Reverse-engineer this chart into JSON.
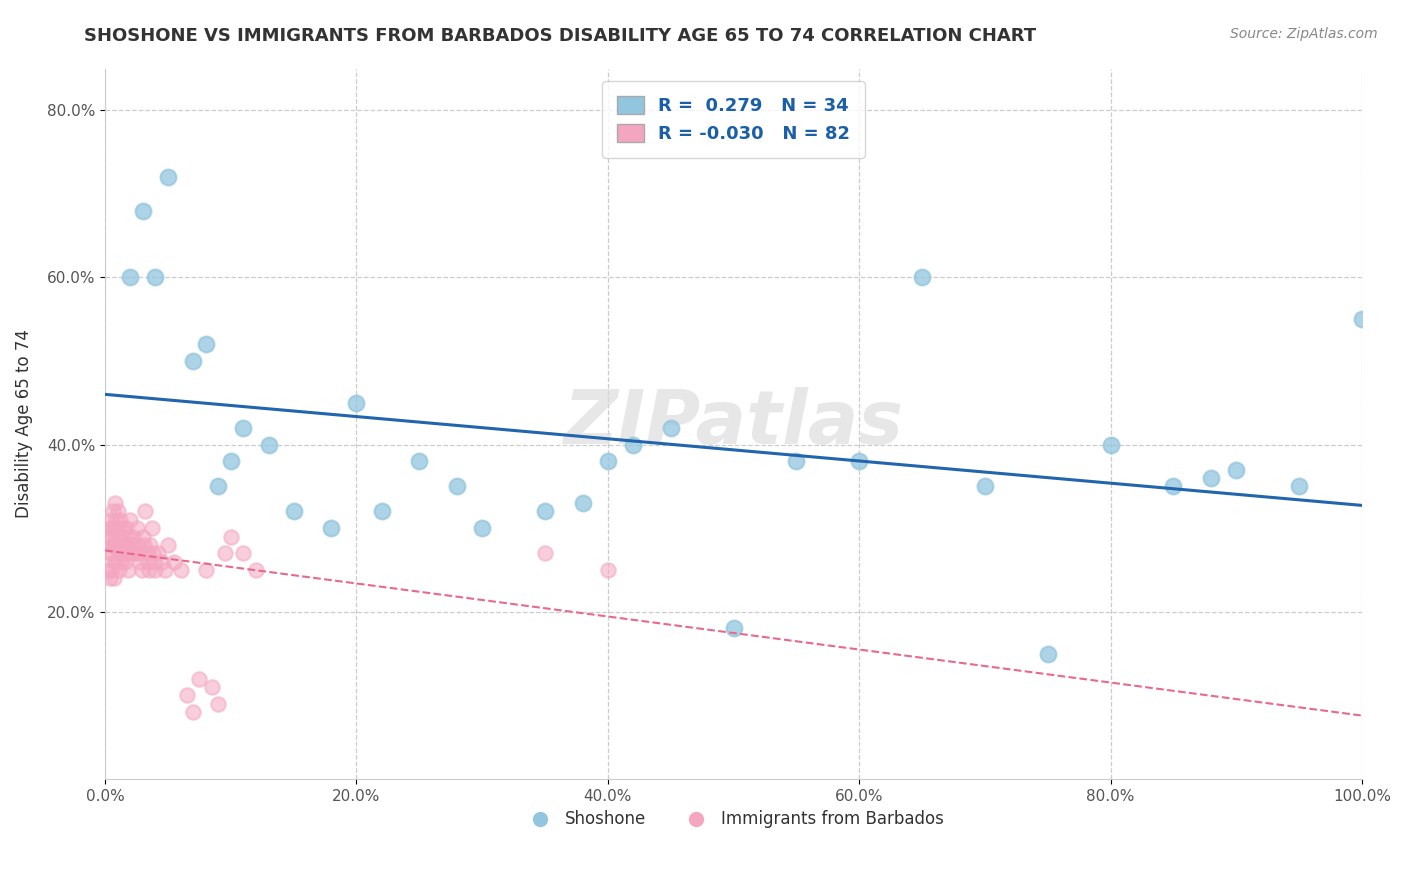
{
  "title": "SHOSHONE VS IMMIGRANTS FROM BARBADOS DISABILITY AGE 65 TO 74 CORRELATION CHART",
  "source": "Source: ZipAtlas.com",
  "ylabel": "Disability Age 65 to 74",
  "xlim": [
    0,
    1.0
  ],
  "ylim": [
    0,
    0.85
  ],
  "xtick_vals": [
    0.0,
    0.2,
    0.4,
    0.6,
    0.8,
    1.0
  ],
  "xtick_labels": [
    "0.0%",
    "20.0%",
    "40.0%",
    "60.0%",
    "80.0%",
    "100.0%"
  ],
  "ytick_vals": [
    0.2,
    0.4,
    0.6,
    0.8
  ],
  "ytick_labels": [
    "20.0%",
    "40.0%",
    "60.0%",
    "80.0%"
  ],
  "legend_R_blue": "0.279",
  "legend_N_blue": "34",
  "legend_R_pink": "-0.030",
  "legend_N_pink": "82",
  "blue_color": "#92c5de",
  "pink_color": "#f4a6c0",
  "blue_line_color": "#2166ac",
  "pink_line_color": "#e8698b",
  "legend_text_color": "#1a5fa8",
  "watermark": "ZIPatlas",
  "shoshone_x": [
    0.02,
    0.04,
    0.03,
    0.05,
    0.07,
    0.08,
    0.09,
    0.1,
    0.11,
    0.13,
    0.15,
    0.18,
    0.2,
    0.22,
    0.25,
    0.28,
    0.3,
    0.35,
    0.38,
    0.4,
    0.42,
    0.45,
    0.5,
    0.55,
    0.6,
    0.65,
    0.7,
    0.75,
    0.8,
    0.85,
    0.88,
    0.9,
    0.95,
    1.0
  ],
  "shoshone_y": [
    0.6,
    0.6,
    0.68,
    0.72,
    0.5,
    0.52,
    0.35,
    0.38,
    0.42,
    0.4,
    0.32,
    0.3,
    0.45,
    0.32,
    0.38,
    0.35,
    0.3,
    0.32,
    0.33,
    0.38,
    0.4,
    0.42,
    0.18,
    0.38,
    0.38,
    0.6,
    0.35,
    0.15,
    0.4,
    0.35,
    0.36,
    0.37,
    0.35,
    0.55
  ],
  "barbados_x": [
    0.003,
    0.003,
    0.004,
    0.004,
    0.004,
    0.005,
    0.005,
    0.005,
    0.005,
    0.006,
    0.006,
    0.006,
    0.007,
    0.007,
    0.007,
    0.008,
    0.008,
    0.008,
    0.009,
    0.009,
    0.009,
    0.01,
    0.01,
    0.01,
    0.011,
    0.011,
    0.012,
    0.012,
    0.013,
    0.013,
    0.014,
    0.014,
    0.015,
    0.015,
    0.016,
    0.016,
    0.017,
    0.017,
    0.018,
    0.018,
    0.019,
    0.019,
    0.02,
    0.02,
    0.021,
    0.022,
    0.023,
    0.024,
    0.025,
    0.026,
    0.027,
    0.028,
    0.029,
    0.03,
    0.031,
    0.032,
    0.033,
    0.034,
    0.035,
    0.036,
    0.037,
    0.038,
    0.039,
    0.04,
    0.042,
    0.045,
    0.048,
    0.05,
    0.055,
    0.06,
    0.065,
    0.07,
    0.075,
    0.08,
    0.085,
    0.09,
    0.095,
    0.1,
    0.11,
    0.12,
    0.35,
    0.4
  ],
  "barbados_y": [
    0.29,
    0.25,
    0.3,
    0.27,
    0.24,
    0.31,
    0.29,
    0.27,
    0.25,
    0.32,
    0.3,
    0.28,
    0.28,
    0.26,
    0.24,
    0.33,
    0.3,
    0.28,
    0.26,
    0.31,
    0.29,
    0.32,
    0.3,
    0.28,
    0.27,
    0.25,
    0.31,
    0.29,
    0.27,
    0.26,
    0.3,
    0.28,
    0.29,
    0.27,
    0.28,
    0.26,
    0.3,
    0.28,
    0.27,
    0.25,
    0.29,
    0.27,
    0.31,
    0.28,
    0.27,
    0.29,
    0.28,
    0.27,
    0.3,
    0.28,
    0.27,
    0.26,
    0.25,
    0.29,
    0.28,
    0.32,
    0.27,
    0.26,
    0.25,
    0.28,
    0.3,
    0.27,
    0.26,
    0.25,
    0.27,
    0.26,
    0.25,
    0.28,
    0.26,
    0.25,
    0.1,
    0.08,
    0.12,
    0.25,
    0.11,
    0.09,
    0.27,
    0.29,
    0.27,
    0.25,
    0.27,
    0.25
  ]
}
